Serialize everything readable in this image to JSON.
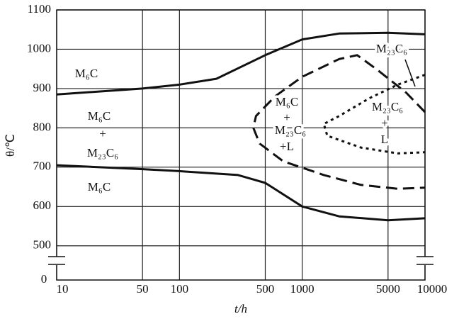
{
  "chart_data": {
    "type": "line",
    "xlabel": "t/h",
    "ylabel": "θ/℃",
    "xscale": "log",
    "xlim": [
      10,
      10000
    ],
    "xticks": [
      10,
      50,
      100,
      500,
      1000,
      5000,
      10000
    ],
    "ylim": [
      413,
      1100
    ],
    "yticks": [
      500,
      600,
      700,
      800,
      900,
      1000,
      1100
    ],
    "origin_label": "0",
    "axis_break": true,
    "grid": true,
    "series": [
      {
        "color": "#111",
        "style": "solid",
        "x": [
          10,
          50,
          100,
          200,
          500,
          1000,
          2000,
          5000,
          10000
        ],
        "values": [
          885,
          900,
          910,
          925,
          985,
          1025,
          1040,
          1042,
          1038
        ]
      },
      {
        "color": "#111",
        "style": "solid",
        "x": [
          10,
          50,
          100,
          300,
          500,
          1000,
          2000,
          5000,
          10000
        ],
        "values": [
          705,
          695,
          690,
          680,
          660,
          600,
          575,
          565,
          570
        ]
      },
      {
        "color": "#111",
        "style": "dashed",
        "x": [
          10000,
          7000,
          4000,
          2800,
          2000,
          1000,
          600,
          420,
          400,
          450,
          700,
          1500,
          3000,
          6000,
          10000
        ],
        "values": [
          840,
          890,
          950,
          985,
          975,
          930,
          880,
          830,
          800,
          760,
          715,
          680,
          655,
          645,
          648
        ]
      },
      {
        "color": "#111",
        "style": "dotted",
        "x": [
          10000,
          6000,
          3500,
          2000,
          1500,
          1600,
          3000,
          6000,
          10000
        ],
        "values": [
          935,
          910,
          875,
          830,
          810,
          780,
          750,
          735,
          738
        ]
      }
    ],
    "annotations": [
      "M₆C",
      "M₆C",
      "+",
      "M₂₃C₆",
      "M₆C",
      "M₆C",
      "+",
      "M₂₃C₆",
      "+L",
      "M₂₃C₆",
      "M₂₃C₆",
      "+",
      "L"
    ]
  }
}
